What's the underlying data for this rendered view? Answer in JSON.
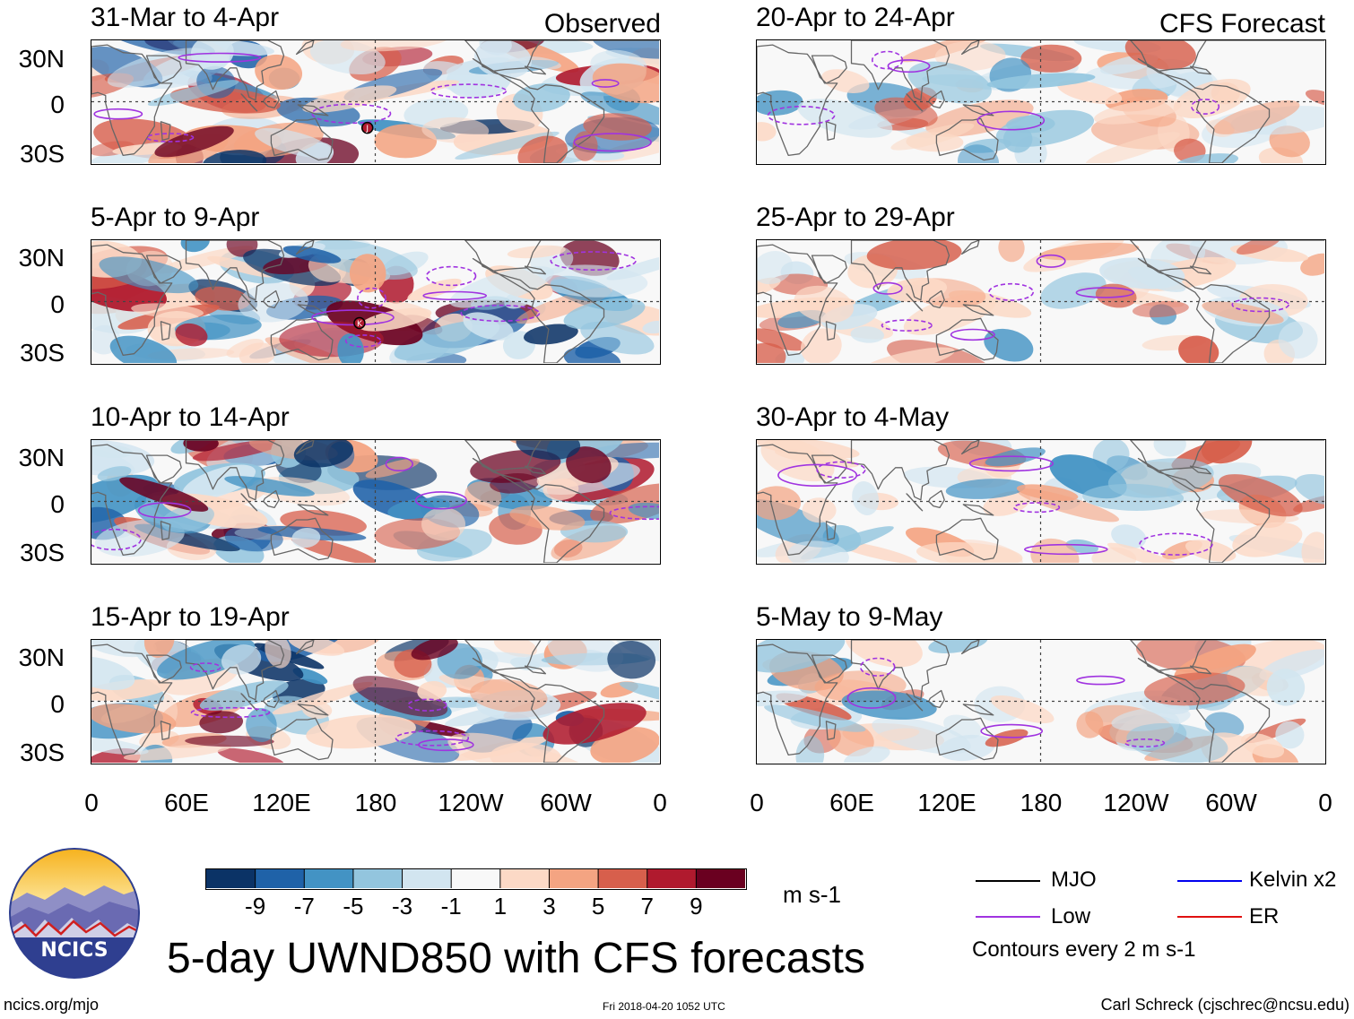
{
  "figure": {
    "title": "5-day UWND850 with CFS forecasts",
    "observed_label": "Observed",
    "forecast_label": "CFS Forecast",
    "units": "m s-1",
    "timestamp": "Fri 2018-04-20 1052 UTC",
    "website": "ncics.org/mjo",
    "author": "Carl Schreck (cjschrec@ncsu.edu)",
    "logo_text": "NCICS"
  },
  "panels": {
    "observed": [
      {
        "period": "31-Mar to 4-Apr"
      },
      {
        "period": "5-Apr to 9-Apr"
      },
      {
        "period": "10-Apr to 14-Apr"
      },
      {
        "period": "15-Apr to 19-Apr"
      }
    ],
    "forecast": [
      {
        "period": "20-Apr to 24-Apr"
      },
      {
        "period": "25-Apr to 29-Apr"
      },
      {
        "period": "30-Apr to 4-May"
      },
      {
        "period": "5-May to 9-May"
      }
    ]
  },
  "axes": {
    "lat_labels": [
      "30N",
      "0",
      "30S"
    ],
    "lon_labels": [
      "0",
      "60E",
      "120E",
      "180",
      "120W",
      "60W",
      "0"
    ]
  },
  "colorbar": {
    "ticks": [
      "-9",
      "-7",
      "-5",
      "-3",
      "-1",
      "1",
      "3",
      "5",
      "7",
      "9"
    ],
    "colors": [
      "#0b3366",
      "#1f62a8",
      "#4393c4",
      "#93c5de",
      "#d2e5f0",
      "#f8f8f8",
      "#fcd9c6",
      "#f4a482",
      "#d75f4c",
      "#b01a2e",
      "#6a0020"
    ]
  },
  "legend": {
    "mjo": {
      "label": "MJO",
      "color": "#000000"
    },
    "low": {
      "label": "Low",
      "color": "#a033e0"
    },
    "kelvin": {
      "label": "Kelvin x2",
      "color": "#0000ee"
    },
    "er": {
      "label": "ER",
      "color": "#e01010"
    },
    "contour_note": "Contours every 2 m s-1"
  },
  "storm_markers": [
    "J",
    "K"
  ]
}
